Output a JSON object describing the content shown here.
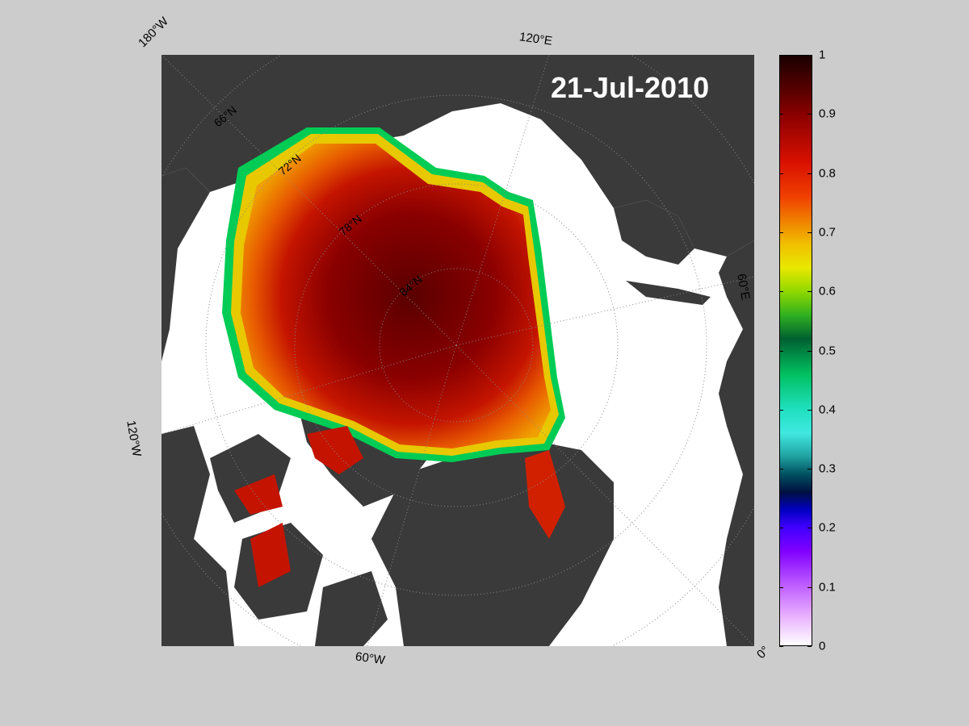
{
  "date": "21-Jul-2010",
  "longitude_labels": {
    "w180": "180°W",
    "e120": "120°E",
    "e60": "60°E",
    "w120": "120°W",
    "w60": "60°W",
    "zero": "0°"
  },
  "latitude_labels": {
    "n66": "66°N",
    "n72": "72°N",
    "n78": "78°N",
    "n84": "84°N"
  },
  "colorbar": {
    "ticks": [
      "1",
      "0.9",
      "0.8",
      "0.7",
      "0.6",
      "0.5",
      "0.4",
      "0.3",
      "0.2",
      "0.1",
      "0"
    ],
    "range": [
      0,
      1
    ]
  },
  "colors": {
    "background": "#cccccc",
    "land": "#3a3a3a",
    "open_water": "#ffffff",
    "ice_high": "#5a0000",
    "ice_mid": "#cc1a00",
    "ice_edge": "#00cc55"
  }
}
